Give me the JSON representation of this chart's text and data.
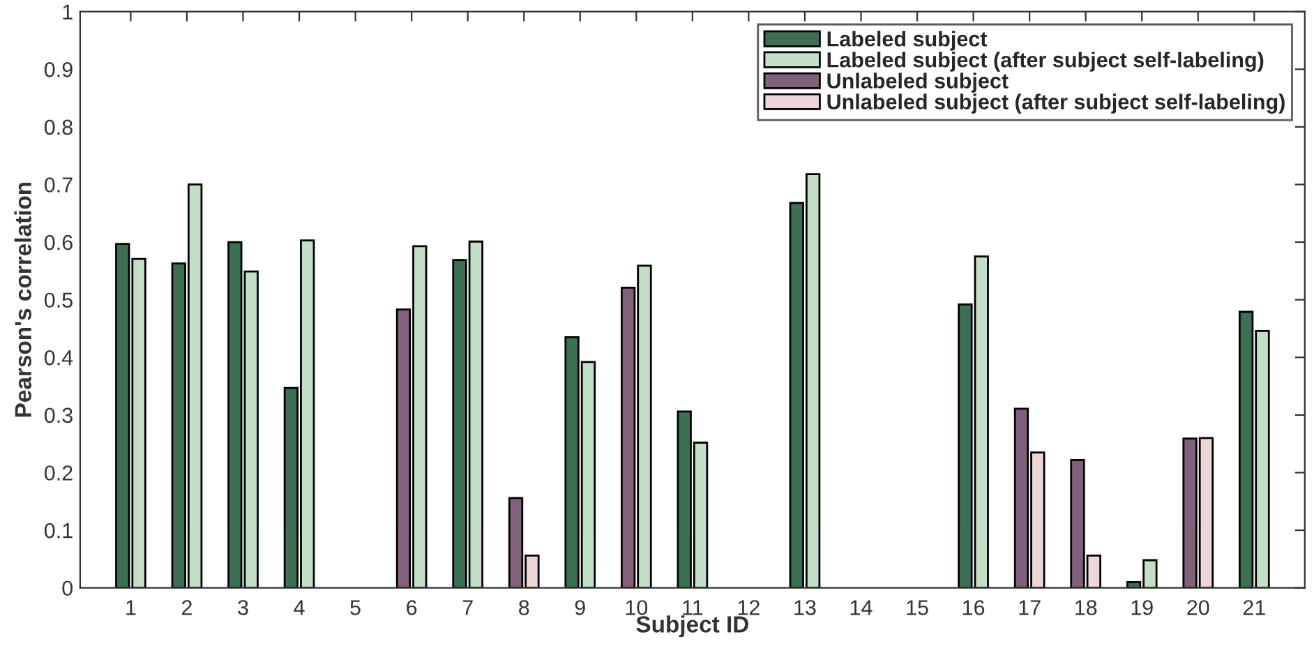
{
  "chart_data": {
    "type": "bar",
    "xlabel": "Subject ID",
    "ylabel": "Pearson's correlation",
    "categories": [
      "1",
      "2",
      "3",
      "4",
      "5",
      "6",
      "7",
      "8",
      "9",
      "10",
      "11",
      "12",
      "13",
      "14",
      "15",
      "16",
      "17",
      "18",
      "19",
      "20",
      "21"
    ],
    "series": [
      {
        "name": "Labeled subject",
        "color": "#3b7055",
        "values": [
          0.597,
          0.563,
          0.6,
          0.347,
          null,
          null,
          0.569,
          null,
          0.435,
          null,
          0.306,
          null,
          0.668,
          null,
          null,
          0.492,
          null,
          null,
          0.01,
          null,
          0.479
        ]
      },
      {
        "name": "Labeled subject (after subject self-labeling)",
        "color": "#c3dfc8",
        "values": [
          0.571,
          0.7,
          0.549,
          0.603,
          null,
          0.593,
          0.601,
          null,
          0.392,
          0.559,
          0.252,
          null,
          0.718,
          null,
          null,
          0.575,
          null,
          null,
          0.048,
          null,
          0.446
        ]
      },
      {
        "name": "Unlabeled subject",
        "color": "#80607a",
        "values": [
          null,
          null,
          null,
          null,
          null,
          0.483,
          null,
          0.156,
          null,
          0.521,
          null,
          null,
          null,
          null,
          null,
          null,
          0.311,
          0.222,
          null,
          0.259,
          null
        ]
      },
      {
        "name": "Unlabeled subject (after subject self-labeling)",
        "color": "#ecd6d6",
        "values": [
          null,
          null,
          null,
          null,
          null,
          null,
          null,
          0.056,
          null,
          null,
          null,
          null,
          null,
          null,
          null,
          null,
          0.235,
          0.056,
          null,
          0.26,
          null
        ]
      }
    ],
    "ylim": [
      0,
      1
    ],
    "yticks": [
      0,
      0.1,
      0.2,
      0.3,
      0.4,
      0.5,
      0.6,
      0.7,
      0.8,
      0.9,
      1
    ],
    "grid": false,
    "legend": "top right"
  }
}
